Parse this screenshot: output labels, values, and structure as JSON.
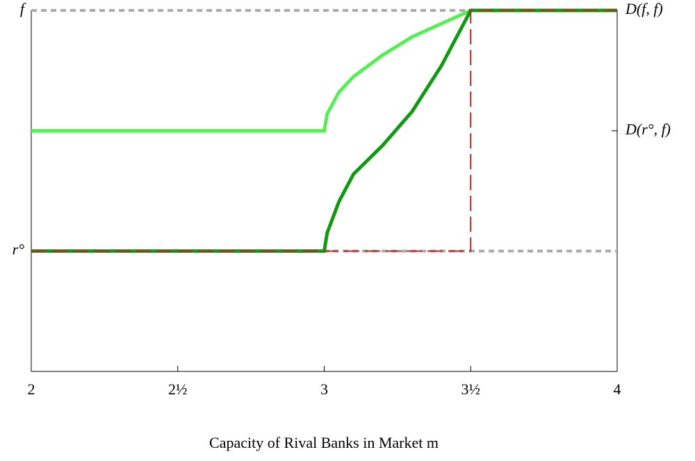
{
  "chart_data": {
    "type": "line",
    "xlabel": "Capacity of Rival Banks in Market m",
    "xlim": [
      2,
      4
    ],
    "xticks": [
      2,
      {
        "value": 2.5,
        "label": "2½"
      },
      3,
      {
        "value": 3.5,
        "label": "3½"
      },
      4
    ],
    "ylim": [
      0,
      3
    ],
    "yticks": [
      {
        "value": 1,
        "label": "r°"
      },
      {
        "value": 3,
        "label": "f"
      }
    ],
    "y2lim": [
      0,
      3
    ],
    "y2ticks": [
      {
        "value": 2,
        "label": "D(r°, f)"
      },
      {
        "value": 3,
        "label": "D(f, f)"
      }
    ],
    "hlines": [
      {
        "y": 3,
        "color": "#aaaaaa"
      },
      {
        "y": 1,
        "color": "#aaaaaa"
      }
    ],
    "series": [
      {
        "color": "#55ee55",
        "x": [
          2,
          3,
          3.01,
          3.05,
          3.1,
          3.2,
          3.3,
          3.4,
          3.5,
          4
        ],
        "values": [
          2,
          2,
          2.14,
          2.32,
          2.45,
          2.63,
          2.78,
          2.89,
          3,
          3
        ]
      },
      {
        "color": "#119911",
        "x": [
          2,
          3,
          3.01,
          3.05,
          3.1,
          3.2,
          3.3,
          3.4,
          3.5,
          4
        ],
        "values": [
          1,
          1,
          1.15,
          1.41,
          1.64,
          1.88,
          2.16,
          2.54,
          3,
          3
        ]
      },
      {
        "color": "#bb2222",
        "dashed": true,
        "x": [
          2,
          3.5,
          3.5,
          4
        ],
        "values": [
          1,
          1,
          3,
          3
        ]
      }
    ]
  }
}
